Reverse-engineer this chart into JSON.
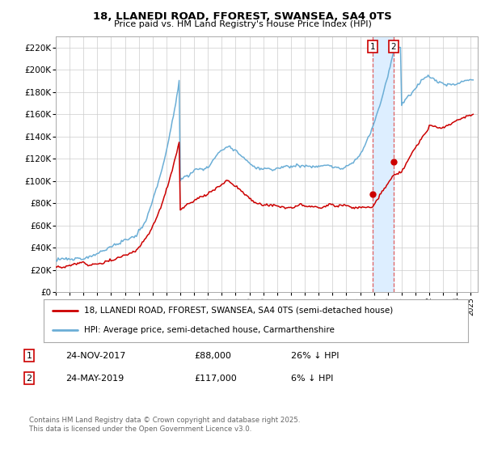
{
  "title": "18, LLANEDI ROAD, FFOREST, SWANSEA, SA4 0TS",
  "subtitle": "Price paid vs. HM Land Registry's House Price Index (HPI)",
  "ylim": [
    0,
    230000
  ],
  "yticks": [
    0,
    20000,
    40000,
    60000,
    80000,
    100000,
    120000,
    140000,
    160000,
    180000,
    200000,
    220000
  ],
  "ytick_labels": [
    "£0",
    "£20K",
    "£40K",
    "£60K",
    "£80K",
    "£100K",
    "£120K",
    "£140K",
    "£160K",
    "£180K",
    "£200K",
    "£220K"
  ],
  "sale1_date": "24-NOV-2017",
  "sale1_price": 88000,
  "sale1_hpi_diff": "26% ↓ HPI",
  "sale2_date": "24-MAY-2019",
  "sale2_price": 117000,
  "sale2_hpi_diff": "6% ↓ HPI",
  "hpi_line_color": "#6baed6",
  "price_line_color": "#cc0000",
  "vline_color": "#e06060",
  "highlight_color": "#ddeeff",
  "legend1": "18, LLANEDI ROAD, FFOREST, SWANSEA, SA4 0TS (semi-detached house)",
  "legend2": "HPI: Average price, semi-detached house, Carmarthenshire",
  "footer": "Contains HM Land Registry data © Crown copyright and database right 2025.\nThis data is licensed under the Open Government Licence v3.0.",
  "background_color": "#ffffff",
  "grid_color": "#cccccc",
  "sale1_year": 2017.9,
  "sale2_year": 2019.4
}
